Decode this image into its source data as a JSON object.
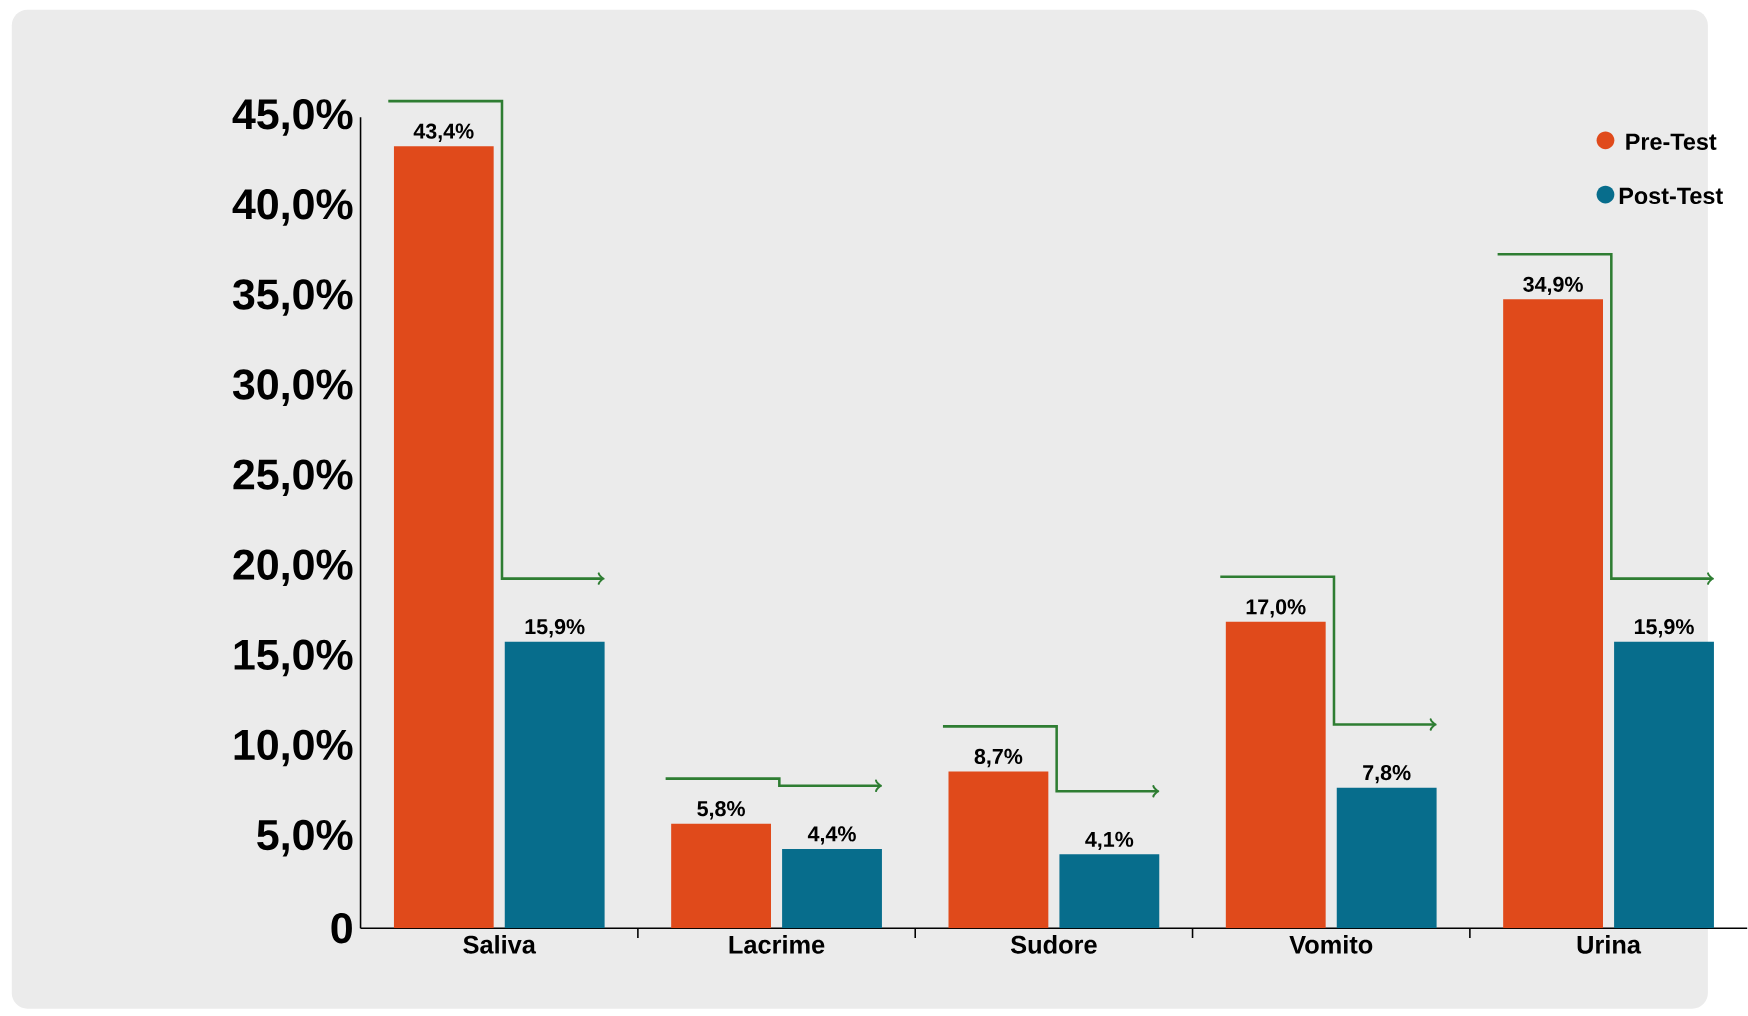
{
  "chart_data": {
    "type": "bar",
    "categories": [
      "Saliva",
      "Lacrime",
      "Sudore",
      "Vomito",
      "Urina"
    ],
    "series": [
      {
        "name": "Pre-Test",
        "color": "#e04a1b",
        "values": [
          43.4,
          5.8,
          8.7,
          17.0,
          34.9
        ],
        "value_labels": [
          "43,4%",
          "5,8%",
          "8,7%",
          "17,0%",
          "34,9%"
        ]
      },
      {
        "name": "Post-Test",
        "color": "#076d8c",
        "values": [
          15.9,
          4.4,
          4.1,
          7.8,
          15.9
        ],
        "value_labels": [
          "15,9%",
          "4,4%",
          "4,1%",
          "7,8%",
          "15,9%"
        ]
      }
    ],
    "ylim": [
      0,
      45
    ],
    "yticks": [
      {
        "value": 0,
        "label": "0"
      },
      {
        "value": 5,
        "label": "5,0%"
      },
      {
        "value": 10,
        "label": "10,0%"
      },
      {
        "value": 15,
        "label": "15,0%"
      },
      {
        "value": 20,
        "label": "20,0%"
      },
      {
        "value": 25,
        "label": "25,0%"
      },
      {
        "value": 30,
        "label": "30,0%"
      },
      {
        "value": 35,
        "label": "35,0%"
      },
      {
        "value": 40,
        "label": "40,0%"
      },
      {
        "value": 45,
        "label": "45,0%"
      }
    ],
    "legend": "top right",
    "grid": false
  }
}
